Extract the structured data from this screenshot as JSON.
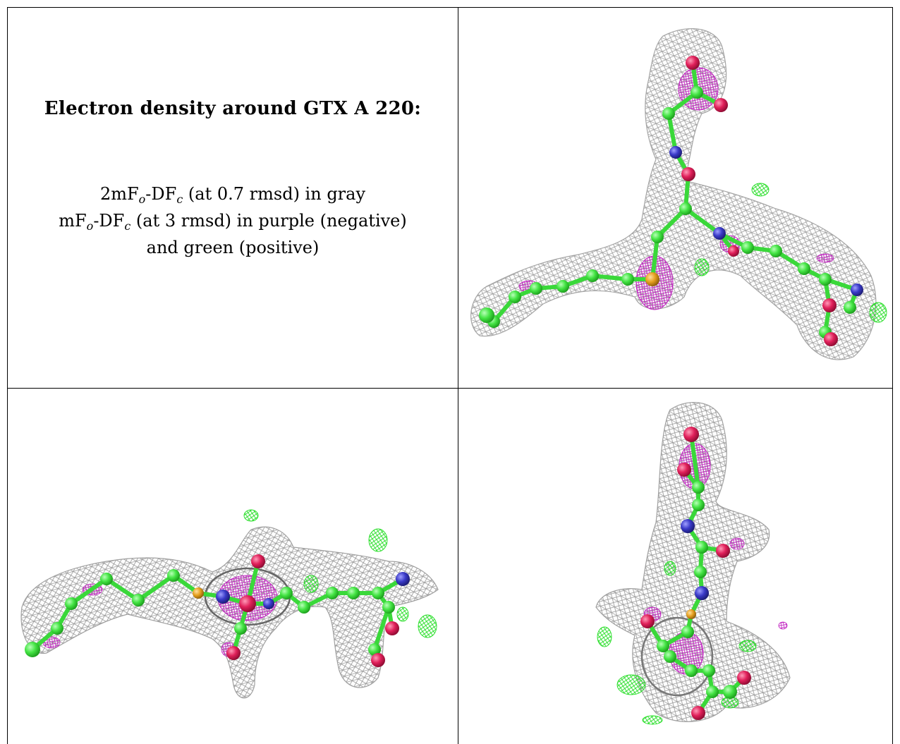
{
  "caption": {
    "title": "Electron density around GTX A 220:",
    "line1": {
      "prefix": "2mF",
      "sub1": "o",
      "mid": "-DF",
      "sub2": "c",
      "suffix": " (at 0.7 rmsd) in gray"
    },
    "line2": {
      "prefix": "mF",
      "sub1": "o",
      "mid": "-DF",
      "sub2": "c",
      "suffix": " (at 3 rmsd) in purple (negative)"
    },
    "line3": "and green (positive)"
  },
  "colors": {
    "mesh_2fofc": "#9a9a9a",
    "mesh_negative": "#c020c0",
    "mesh_positive": "#22dd22",
    "carbon": "#44e444",
    "oxygen": "#e0205a",
    "nitrogen": "#3a3ac8",
    "sulfur": "#e6a020"
  },
  "panels": [
    {
      "view": "view-1"
    },
    {
      "view": "view-2"
    },
    {
      "view": "view-3"
    }
  ]
}
